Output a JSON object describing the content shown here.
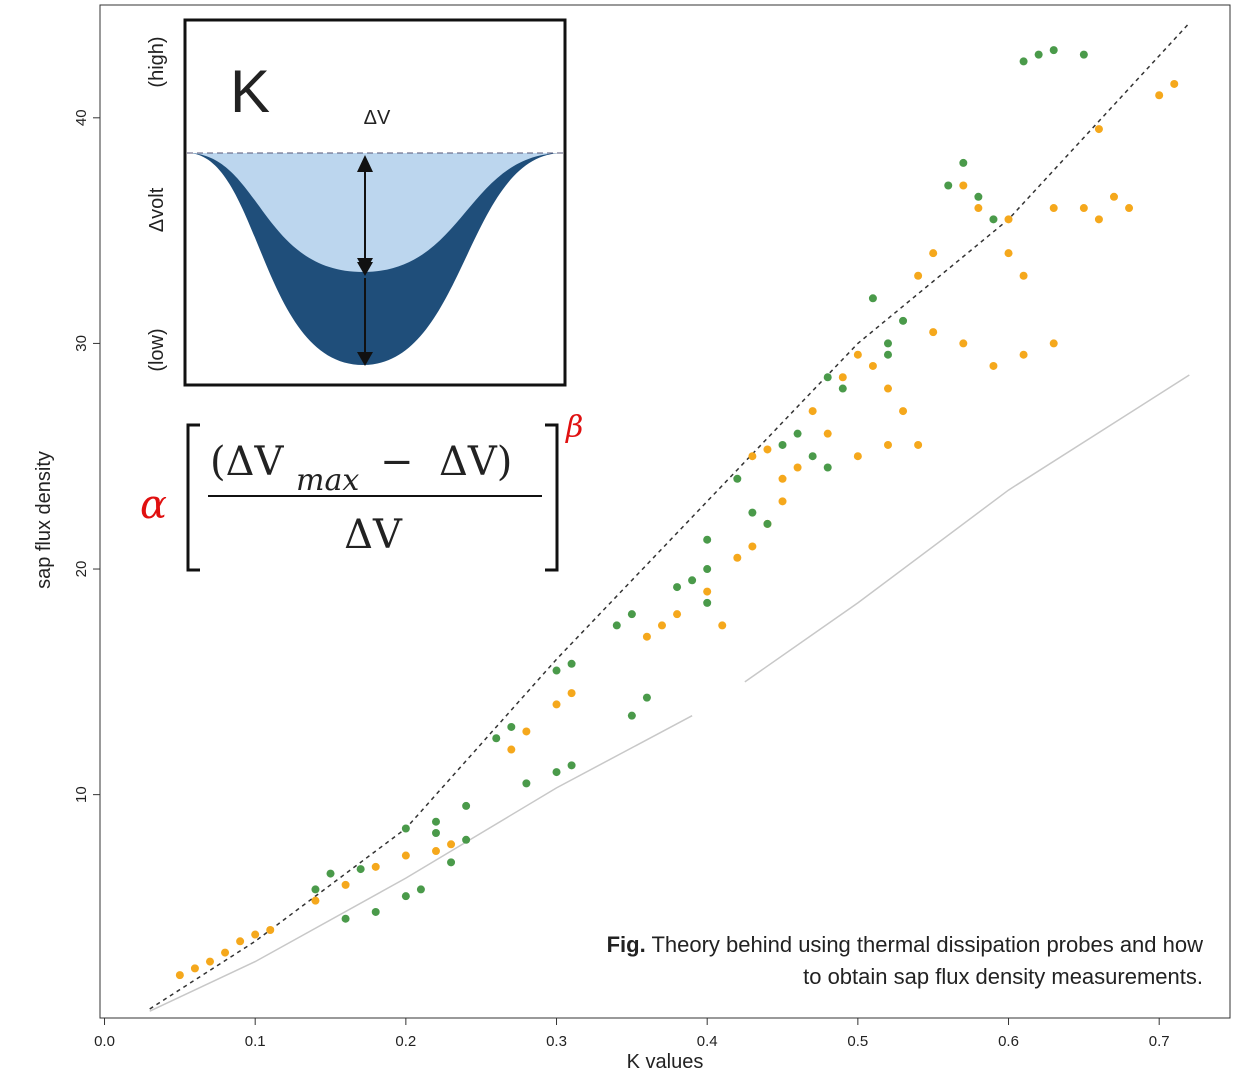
{
  "chart_data": {
    "type": "scatter",
    "x_label": "K values",
    "y_label": "sap flux density",
    "xlim": [
      -0.003,
      0.747
    ],
    "ylim": [
      0.1,
      45
    ],
    "xticks": [
      {
        "value": 0,
        "label": "0.0"
      },
      0.1,
      0.2,
      0.3,
      0.4,
      0.5,
      0.6,
      0.7
    ],
    "yticks": [
      10,
      20,
      30,
      40
    ],
    "series": [
      {
        "mode": "points",
        "color": "#f5a81c",
        "x": [
          0.05,
          0.06,
          0.07,
          0.08,
          0.09,
          0.1,
          0.11,
          0.14,
          0.16,
          0.18,
          0.2,
          0.22,
          0.23,
          0.27,
          0.28,
          0.3,
          0.31,
          0.36,
          0.37,
          0.38,
          0.4,
          0.41,
          0.42,
          0.43,
          0.44,
          0.45,
          0.43,
          0.46,
          0.47,
          0.48,
          0.49,
          0.5,
          0.51,
          0.52,
          0.53,
          0.5,
          0.52,
          0.54,
          0.55,
          0.57,
          0.54,
          0.55,
          0.57,
          0.58,
          0.6,
          0.61,
          0.59,
          0.61,
          0.63,
          0.63,
          0.65,
          0.66,
          0.67,
          0.68,
          0.66,
          0.7,
          0.71,
          0.6,
          0.44,
          0.45
        ],
        "values": [
          2,
          2.3,
          2.6,
          3,
          3.5,
          3.8,
          4,
          5.3,
          6,
          6.8,
          7.3,
          7.5,
          7.8,
          12,
          12.8,
          14,
          14.5,
          17,
          17.5,
          18,
          19,
          17.5,
          20.5,
          21,
          22,
          23,
          25,
          24.5,
          27,
          26,
          28.5,
          29.5,
          29,
          28,
          27,
          25,
          25.5,
          25.5,
          30.5,
          30,
          33,
          34,
          37,
          36,
          34,
          33,
          29,
          29.5,
          30,
          36,
          36,
          35.5,
          36.5,
          36,
          39.5,
          41,
          41.5,
          35.5,
          25.3,
          24
        ]
      },
      {
        "mode": "points",
        "color": "#4a9a4a",
        "x": [
          0.14,
          0.16,
          0.18,
          0.2,
          0.21,
          0.15,
          0.17,
          0.2,
          0.22,
          0.23,
          0.24,
          0.22,
          0.24,
          0.26,
          0.27,
          0.28,
          0.3,
          0.31,
          0.3,
          0.31,
          0.35,
          0.36,
          0.34,
          0.35,
          0.38,
          0.39,
          0.4,
          0.4,
          0.4,
          0.42,
          0.43,
          0.44,
          0.45,
          0.46,
          0.47,
          0.48,
          0.49,
          0.51,
          0.52,
          0.53,
          0.52,
          0.56,
          0.57,
          0.58,
          0.59,
          0.61,
          0.63,
          0.65,
          0.62,
          0.48
        ],
        "values": [
          5.8,
          4.5,
          4.8,
          5.5,
          5.8,
          6.5,
          6.7,
          8.5,
          8.8,
          7,
          9.5,
          8.3,
          8,
          12.5,
          13,
          10.5,
          11,
          11.3,
          15.5,
          15.8,
          13.5,
          14.3,
          17.5,
          18,
          19.2,
          19.5,
          18.5,
          20,
          21.3,
          24,
          22.5,
          22,
          25.5,
          26,
          25,
          24.5,
          28,
          32,
          30,
          31,
          29.5,
          37,
          38,
          36.5,
          35.5,
          42.5,
          43,
          42.8,
          42.8,
          28.5
        ]
      },
      {
        "mode": "line",
        "color": "#333333",
        "dash": true,
        "x": [
          0.03,
          0.1,
          0.2,
          0.3,
          0.4,
          0.5,
          0.6,
          0.72
        ],
        "values": [
          0.5,
          3.5,
          8.5,
          16,
          23,
          30,
          35.5,
          44.2
        ]
      },
      {
        "mode": "line",
        "color": "#c8c8c8",
        "dash": false,
        "x": [
          0.03,
          0.1,
          0.2,
          0.3,
          0.39,
          0.41,
          0.425,
          0.5,
          0.6,
          0.72
        ],
        "values": [
          0.4,
          2.6,
          6.3,
          10.3,
          13.5,
          null,
          15,
          18.5,
          23.5,
          28.6
        ]
      }
    ],
    "inset": {
      "letter": "K",
      "delta_label": "ΔV",
      "high": "(high)",
      "mid": "Δvolt",
      "low": "(low)"
    },
    "formula": {
      "coefficient": "α",
      "exponent": "β",
      "numerator_open": "(ΔV",
      "subscript": "max",
      "numerator_rest": "−  ΔV)",
      "denominator": "ΔV"
    },
    "caption": {
      "label": "Fig.",
      "lines": [
        "Theory behind using thermal dissipation probes and how",
        "to obtain sap flux density measurements."
      ]
    }
  }
}
